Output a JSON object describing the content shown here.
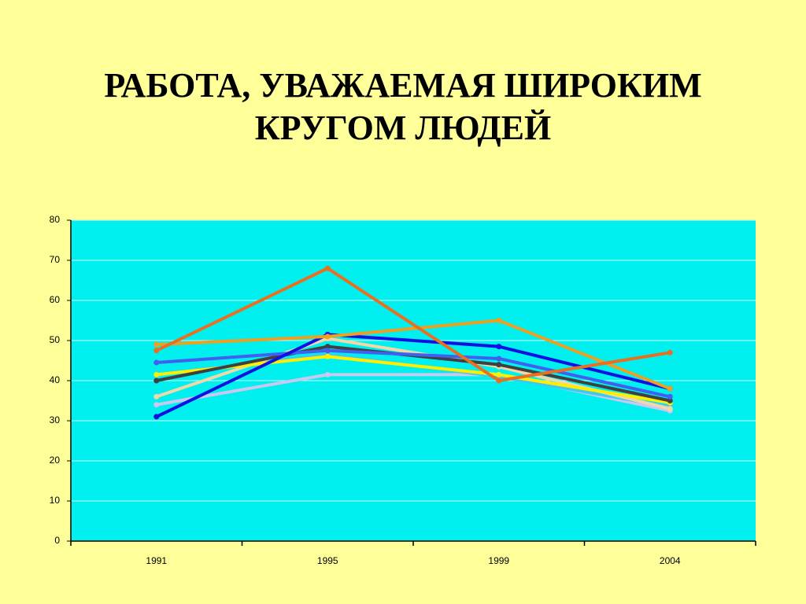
{
  "chart_data": {
    "type": "line",
    "title": "РАБОТА, УВАЖАЕМАЯ ШИРОКИМ КРУГОМ ЛЮДЕЙ",
    "categories": [
      "1991",
      "1995",
      "1999",
      "2004"
    ],
    "ylim": [
      0,
      80
    ],
    "yticks": [
      0,
      10,
      20,
      30,
      40,
      50,
      60,
      70,
      80
    ],
    "grid": true,
    "series": [
      {
        "color": "#c8c8f0",
        "values": [
          34,
          41.5,
          41.5,
          32.5
        ]
      },
      {
        "color": "#40c8f0",
        "values": [
          41.5,
          46.5,
          41,
          33.5
        ]
      },
      {
        "color": "#f0d8a8",
        "values": [
          36,
          50.5,
          43.5,
          33
        ]
      },
      {
        "color": "#ffee00",
        "values": [
          41.5,
          46,
          41.5,
          34.5
        ]
      },
      {
        "color": "#404040",
        "values": [
          40,
          48.5,
          44,
          35
        ]
      },
      {
        "color": "#4060f0",
        "values": [
          44.5,
          47.5,
          45.5,
          36
        ]
      },
      {
        "color": "#1010e0",
        "values": [
          31,
          51.5,
          48.5,
          38
        ]
      },
      {
        "color": "#f0a020",
        "values": [
          49,
          51,
          55,
          38
        ]
      },
      {
        "color": "#e87020",
        "values": [
          47.5,
          68,
          40,
          47
        ]
      }
    ]
  }
}
